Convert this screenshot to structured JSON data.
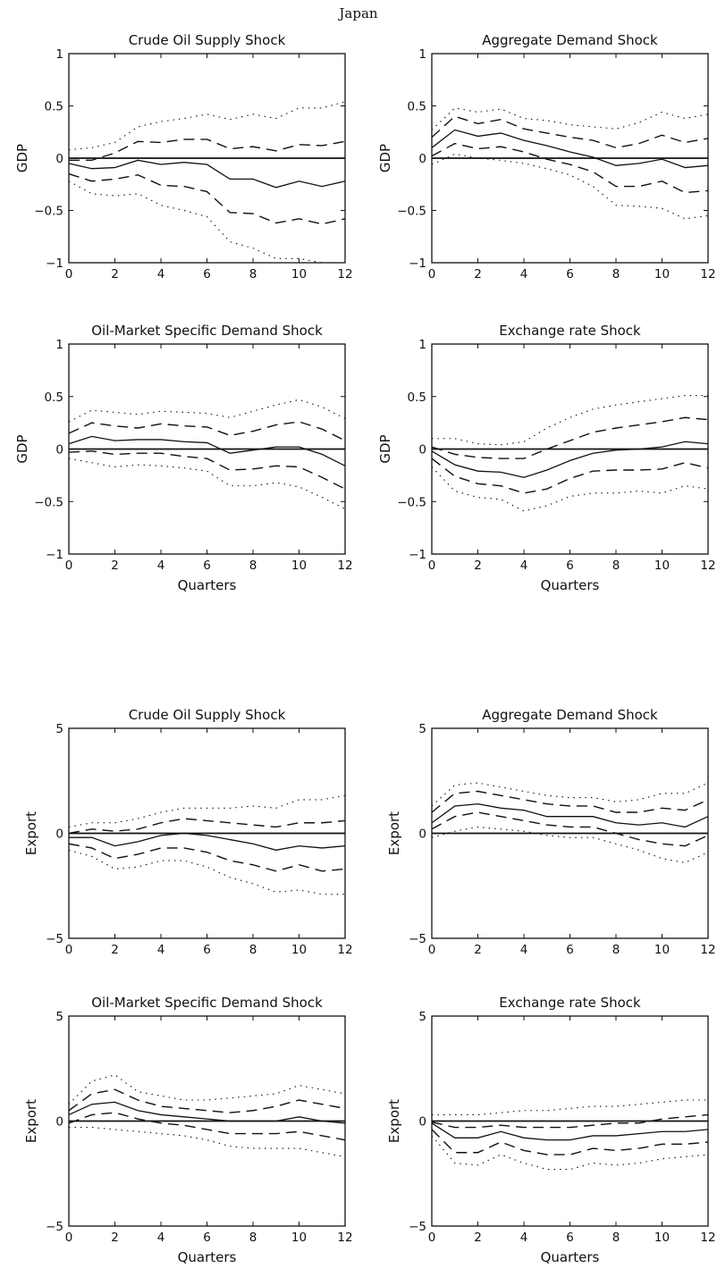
{
  "title": "Japan",
  "chart_data": [
    {
      "type": "line",
      "title": "Crude Oil Supply Shock",
      "ylabel": "GDP",
      "xlabel": "",
      "xlim": [
        0,
        12
      ],
      "ylim": [
        -1,
        1
      ],
      "xticks": [
        0,
        2,
        4,
        6,
        8,
        10,
        12
      ],
      "yticks": [
        -1,
        -0.5,
        0,
        0.5,
        1
      ],
      "x": [
        0,
        1,
        2,
        3,
        4,
        5,
        6,
        7,
        8,
        9,
        10,
        11,
        12
      ],
      "series": [
        {
          "values": [
            -0.05,
            -0.1,
            -0.09,
            -0.02,
            -0.06,
            -0.04,
            -0.06,
            -0.2,
            -0.2,
            -0.28,
            -0.22,
            -0.27,
            -0.22
          ]
        },
        {
          "values": [
            -0.02,
            -0.02,
            0.05,
            0.16,
            0.15,
            0.18,
            0.18,
            0.09,
            0.11,
            0.07,
            0.13,
            0.12,
            0.16
          ]
        },
        {
          "values": [
            -0.15,
            -0.22,
            -0.2,
            -0.16,
            -0.26,
            -0.27,
            -0.32,
            -0.52,
            -0.53,
            -0.62,
            -0.58,
            -0.63,
            -0.58
          ]
        },
        {
          "values": [
            0.08,
            0.1,
            0.15,
            0.3,
            0.35,
            0.38,
            0.42,
            0.37,
            0.42,
            0.38,
            0.48,
            0.48,
            0.54
          ]
        },
        {
          "values": [
            -0.22,
            -0.34,
            -0.36,
            -0.34,
            -0.45,
            -0.5,
            -0.56,
            -0.8,
            -0.86,
            -0.96,
            -0.96,
            -1.0,
            -1.0
          ]
        }
      ]
    },
    {
      "type": "line",
      "title": "Aggregate Demand Shock",
      "ylabel": "GDP",
      "xlabel": "",
      "xlim": [
        0,
        12
      ],
      "ylim": [
        -1,
        1
      ],
      "xticks": [
        0,
        2,
        4,
        6,
        8,
        10,
        12
      ],
      "yticks": [
        -1,
        -0.5,
        0,
        0.5,
        1
      ],
      "x": [
        0,
        1,
        2,
        3,
        4,
        5,
        6,
        7,
        8,
        9,
        10,
        11,
        12
      ],
      "series": [
        {
          "values": [
            0.1,
            0.27,
            0.21,
            0.24,
            0.17,
            0.12,
            0.06,
            0.01,
            -0.07,
            -0.05,
            -0.01,
            -0.09,
            -0.07
          ]
        },
        {
          "values": [
            0.2,
            0.4,
            0.33,
            0.37,
            0.28,
            0.24,
            0.2,
            0.17,
            0.1,
            0.14,
            0.22,
            0.15,
            0.19
          ]
        },
        {
          "values": [
            0.02,
            0.14,
            0.09,
            0.11,
            0.06,
            -0.01,
            -0.06,
            -0.13,
            -0.27,
            -0.27,
            -0.22,
            -0.33,
            -0.31
          ]
        },
        {
          "values": [
            0.27,
            0.48,
            0.44,
            0.47,
            0.38,
            0.36,
            0.32,
            0.3,
            0.28,
            0.34,
            0.44,
            0.38,
            0.42
          ]
        },
        {
          "values": [
            -0.06,
            0.04,
            0.0,
            -0.02,
            -0.05,
            -0.1,
            -0.16,
            -0.27,
            -0.45,
            -0.46,
            -0.48,
            -0.58,
            -0.55
          ]
        }
      ]
    },
    {
      "type": "line",
      "title": "Oil-Market Specific Demand Shock",
      "ylabel": "GDP",
      "xlabel": "Quarters",
      "xlim": [
        0,
        12
      ],
      "ylim": [
        -1,
        1
      ],
      "xticks": [
        0,
        2,
        4,
        6,
        8,
        10,
        12
      ],
      "yticks": [
        -1,
        -0.5,
        0,
        0.5,
        1
      ],
      "x": [
        0,
        1,
        2,
        3,
        4,
        5,
        6,
        7,
        8,
        9,
        10,
        11,
        12
      ],
      "series": [
        {
          "values": [
            0.05,
            0.12,
            0.08,
            0.09,
            0.09,
            0.07,
            0.06,
            -0.04,
            -0.01,
            0.02,
            0.02,
            -0.05,
            -0.16
          ]
        },
        {
          "values": [
            0.15,
            0.25,
            0.22,
            0.2,
            0.24,
            0.22,
            0.21,
            0.13,
            0.17,
            0.23,
            0.26,
            0.19,
            0.08
          ]
        },
        {
          "values": [
            -0.03,
            -0.02,
            -0.05,
            -0.04,
            -0.04,
            -0.07,
            -0.09,
            -0.2,
            -0.19,
            -0.16,
            -0.17,
            -0.27,
            -0.38
          ]
        },
        {
          "values": [
            0.26,
            0.37,
            0.35,
            0.33,
            0.36,
            0.35,
            0.34,
            0.3,
            0.36,
            0.42,
            0.47,
            0.4,
            0.29
          ]
        },
        {
          "values": [
            -0.09,
            -0.13,
            -0.17,
            -0.15,
            -0.16,
            -0.18,
            -0.21,
            -0.35,
            -0.35,
            -0.32,
            -0.36,
            -0.46,
            -0.57
          ]
        }
      ]
    },
    {
      "type": "line",
      "title": "Exchange rate Shock",
      "ylabel": "GDP",
      "xlabel": "Quarters",
      "xlim": [
        0,
        12
      ],
      "ylim": [
        -1,
        1
      ],
      "xticks": [
        0,
        2,
        4,
        6,
        8,
        10,
        12
      ],
      "yticks": [
        -1,
        -0.5,
        0,
        0.5,
        1
      ],
      "x": [
        0,
        1,
        2,
        3,
        4,
        5,
        6,
        7,
        8,
        9,
        10,
        11,
        12
      ],
      "series": [
        {
          "values": [
            -0.02,
            -0.15,
            -0.21,
            -0.22,
            -0.27,
            -0.2,
            -0.11,
            -0.04,
            -0.01,
            0.0,
            0.02,
            0.07,
            0.05
          ]
        },
        {
          "values": [
            0.02,
            -0.05,
            -0.08,
            -0.09,
            -0.09,
            0.0,
            0.08,
            0.16,
            0.2,
            0.23,
            0.26,
            0.3,
            0.28
          ]
        },
        {
          "values": [
            -0.09,
            -0.26,
            -0.33,
            -0.35,
            -0.42,
            -0.38,
            -0.28,
            -0.21,
            -0.2,
            -0.2,
            -0.19,
            -0.13,
            -0.18
          ]
        },
        {
          "values": [
            0.1,
            0.1,
            0.05,
            0.04,
            0.07,
            0.2,
            0.3,
            0.38,
            0.42,
            0.45,
            0.48,
            0.51,
            0.51
          ]
        },
        {
          "values": [
            -0.17,
            -0.4,
            -0.46,
            -0.48,
            -0.59,
            -0.54,
            -0.45,
            -0.42,
            -0.42,
            -0.4,
            -0.42,
            -0.35,
            -0.38
          ]
        }
      ]
    },
    {
      "type": "line",
      "title": "Crude Oil Supply Shock",
      "ylabel": "Export",
      "xlabel": "",
      "xlim": [
        0,
        12
      ],
      "ylim": [
        -5,
        5
      ],
      "xticks": [
        0,
        2,
        4,
        6,
        8,
        10,
        12
      ],
      "yticks": [
        -5,
        0,
        5
      ],
      "x": [
        0,
        1,
        2,
        3,
        4,
        5,
        6,
        7,
        8,
        9,
        10,
        11,
        12
      ],
      "series": [
        {
          "values": [
            -0.2,
            -0.2,
            -0.6,
            -0.4,
            -0.1,
            0.0,
            -0.1,
            -0.3,
            -0.5,
            -0.8,
            -0.6,
            -0.7,
            -0.6
          ]
        },
        {
          "values": [
            0.0,
            0.2,
            0.1,
            0.2,
            0.5,
            0.7,
            0.6,
            0.5,
            0.4,
            0.3,
            0.5,
            0.5,
            0.6
          ]
        },
        {
          "values": [
            -0.5,
            -0.7,
            -1.2,
            -1.0,
            -0.7,
            -0.7,
            -0.9,
            -1.3,
            -1.5,
            -1.8,
            -1.5,
            -1.8,
            -1.7
          ]
        },
        {
          "values": [
            0.3,
            0.5,
            0.5,
            0.7,
            1.0,
            1.2,
            1.2,
            1.2,
            1.3,
            1.2,
            1.6,
            1.6,
            1.8
          ]
        },
        {
          "values": [
            -0.8,
            -1.1,
            -1.7,
            -1.6,
            -1.3,
            -1.3,
            -1.6,
            -2.1,
            -2.4,
            -2.8,
            -2.7,
            -2.9,
            -2.9
          ]
        }
      ]
    },
    {
      "type": "line",
      "title": "Aggregate Demand Shock",
      "ylabel": "Export",
      "xlabel": "",
      "xlim": [
        0,
        12
      ],
      "ylim": [
        -5,
        5
      ],
      "xticks": [
        0,
        2,
        4,
        6,
        8,
        10,
        12
      ],
      "yticks": [
        -5,
        0,
        5
      ],
      "x": [
        0,
        1,
        2,
        3,
        4,
        5,
        6,
        7,
        8,
        9,
        10,
        11,
        12
      ],
      "series": [
        {
          "values": [
            0.5,
            1.3,
            1.4,
            1.2,
            1.1,
            0.8,
            0.8,
            0.8,
            0.5,
            0.4,
            0.5,
            0.3,
            0.8
          ]
        },
        {
          "values": [
            1.0,
            1.9,
            2.0,
            1.8,
            1.6,
            1.4,
            1.3,
            1.3,
            1.0,
            1.0,
            1.2,
            1.1,
            1.6
          ]
        },
        {
          "values": [
            0.2,
            0.8,
            1.0,
            0.8,
            0.6,
            0.4,
            0.3,
            0.3,
            0.0,
            -0.3,
            -0.5,
            -0.6,
            -0.1
          ]
        },
        {
          "values": [
            1.3,
            2.3,
            2.4,
            2.2,
            2.0,
            1.8,
            1.7,
            1.7,
            1.5,
            1.6,
            1.9,
            1.9,
            2.4
          ]
        },
        {
          "values": [
            -0.2,
            0.1,
            0.3,
            0.2,
            0.1,
            -0.1,
            -0.2,
            -0.2,
            -0.5,
            -0.8,
            -1.2,
            -1.4,
            -0.9
          ]
        }
      ]
    },
    {
      "type": "line",
      "title": "Oil-Market Specific Demand Shock",
      "ylabel": "Export",
      "xlabel": "Quarters",
      "xlim": [
        0,
        12
      ],
      "ylim": [
        -5,
        5
      ],
      "xticks": [
        0,
        2,
        4,
        6,
        8,
        10,
        12
      ],
      "yticks": [
        -5,
        0,
        5
      ],
      "x": [
        0,
        1,
        2,
        3,
        4,
        5,
        6,
        7,
        8,
        9,
        10,
        11,
        12
      ],
      "series": [
        {
          "values": [
            0.3,
            0.8,
            0.9,
            0.5,
            0.3,
            0.2,
            0.1,
            0.0,
            0.0,
            0.0,
            0.2,
            0.0,
            -0.1
          ]
        },
        {
          "values": [
            0.5,
            1.3,
            1.5,
            1.0,
            0.7,
            0.6,
            0.5,
            0.4,
            0.5,
            0.7,
            1.0,
            0.8,
            0.6
          ]
        },
        {
          "values": [
            -0.1,
            0.3,
            0.4,
            0.1,
            -0.1,
            -0.2,
            -0.4,
            -0.6,
            -0.6,
            -0.6,
            -0.5,
            -0.7,
            -0.9
          ]
        },
        {
          "values": [
            0.8,
            1.9,
            2.2,
            1.4,
            1.2,
            1.0,
            1.0,
            1.1,
            1.2,
            1.3,
            1.7,
            1.5,
            1.3
          ]
        },
        {
          "values": [
            -0.3,
            -0.3,
            -0.4,
            -0.5,
            -0.6,
            -0.7,
            -0.9,
            -1.2,
            -1.3,
            -1.3,
            -1.3,
            -1.5,
            -1.7
          ]
        }
      ]
    },
    {
      "type": "line",
      "title": "Exchange rate Shock",
      "ylabel": "Export",
      "xlabel": "Quarters",
      "xlim": [
        0,
        12
      ],
      "ylim": [
        -5,
        5
      ],
      "xticks": [
        0,
        2,
        4,
        6,
        8,
        10,
        12
      ],
      "yticks": [
        -5,
        0,
        5
      ],
      "x": [
        0,
        1,
        2,
        3,
        4,
        5,
        6,
        7,
        8,
        9,
        10,
        11,
        12
      ],
      "series": [
        {
          "values": [
            -0.1,
            -0.8,
            -0.8,
            -0.5,
            -0.8,
            -0.9,
            -0.9,
            -0.7,
            -0.7,
            -0.6,
            -0.5,
            -0.5,
            -0.4
          ]
        },
        {
          "values": [
            -0.05,
            -0.3,
            -0.3,
            -0.2,
            -0.3,
            -0.3,
            -0.3,
            -0.2,
            -0.1,
            -0.1,
            0.1,
            0.2,
            0.3
          ]
        },
        {
          "values": [
            -0.4,
            -1.5,
            -1.5,
            -1.0,
            -1.4,
            -1.6,
            -1.6,
            -1.3,
            -1.4,
            -1.3,
            -1.1,
            -1.1,
            -1.0
          ]
        },
        {
          "values": [
            0.3,
            0.3,
            0.3,
            0.4,
            0.5,
            0.5,
            0.6,
            0.7,
            0.7,
            0.8,
            0.9,
            1.0,
            1.0
          ]
        },
        {
          "values": [
            -0.7,
            -2.0,
            -2.1,
            -1.6,
            -2.0,
            -2.3,
            -2.3,
            -2.0,
            -2.1,
            -2.0,
            -1.8,
            -1.7,
            -1.6
          ]
        }
      ]
    }
  ]
}
